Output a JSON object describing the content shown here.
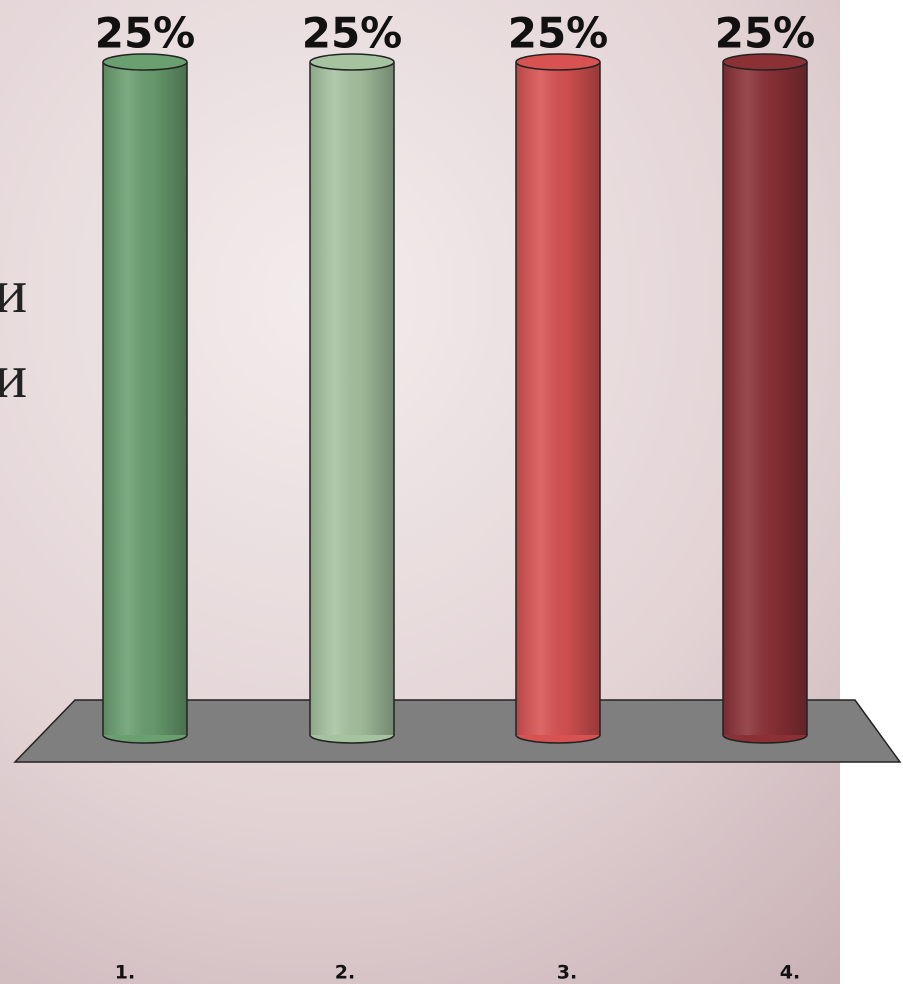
{
  "chart_data": {
    "type": "bar",
    "annotations": [
      "и",
      "и"
    ],
    "categories": [
      "1.",
      "2.",
      "3.",
      "4."
    ],
    "values": [
      25,
      25,
      25,
      25
    ],
    "value_labels": [
      "25%",
      "25%",
      "25%",
      "25%"
    ],
    "colors": [
      "#6a9f70",
      "#a6c3a0",
      "#d85252",
      "#8b3136"
    ]
  }
}
